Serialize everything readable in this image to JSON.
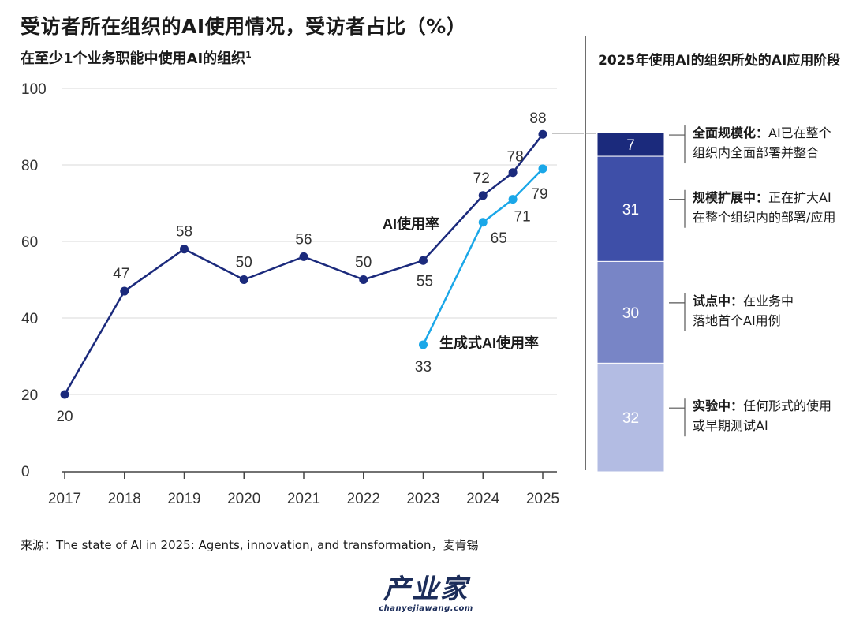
{
  "title": "受访者所在组织的AI使用情况，受访者占比（%）",
  "subtitle": "在至少1个业务职能中使用AI的组织",
  "subtitle_sup": "1",
  "right_title": "2025年使用AI的组织所处的AI应用阶段",
  "source": "来源：The state of AI in 2025: Agents, innovation, and transformation，麦肯锡",
  "logo": {
    "main": "产业家",
    "sub": "chanyejiawang.com"
  },
  "colors": {
    "ai": "#1b2a7c",
    "genai": "#1aa7e8",
    "grid": "#d9d9d9",
    "axis": "#444444"
  },
  "chart_data": [
    {
      "type": "line",
      "xlim": [
        2017,
        2025
      ],
      "ylim": [
        0,
        100
      ],
      "yticks": [
        0,
        20,
        40,
        60,
        80,
        100
      ],
      "xticks": [
        "2017",
        "2018",
        "2019",
        "2020",
        "2021",
        "2022",
        "2023",
        "2024",
        "2025"
      ],
      "grid": true,
      "series": [
        {
          "name": "AI使用率",
          "color": "#1b2a7c",
          "points": [
            {
              "x": 2017,
              "y": 20
            },
            {
              "x": 2018,
              "y": 47
            },
            {
              "x": 2019,
              "y": 58
            },
            {
              "x": 2020,
              "y": 50
            },
            {
              "x": 2021,
              "y": 56
            },
            {
              "x": 2022,
              "y": 50
            },
            {
              "x": 2023,
              "y": 55
            },
            {
              "x": 2024,
              "y": 72
            },
            {
              "x": 2024.5,
              "y": 78
            },
            {
              "x": 2025,
              "y": 88
            }
          ]
        },
        {
          "name": "生成式AI使用率",
          "color": "#1aa7e8",
          "points": [
            {
              "x": 2023,
              "y": 33
            },
            {
              "x": 2024,
              "y": 65
            },
            {
              "x": 2024.5,
              "y": 71
            },
            {
              "x": 2025,
              "y": 79
            }
          ]
        }
      ]
    },
    {
      "type": "bar",
      "stacked": true,
      "segments": [
        {
          "value": 7,
          "color": "#1b2a7c",
          "label_bold": "全面规模化：",
          "label_rest": "AI已在整个",
          "label_line2": "组织内全面部署并整合"
        },
        {
          "value": 31,
          "color": "#3e4fa8",
          "label_bold": "规模扩展中：",
          "label_rest": "正在扩大AI",
          "label_line2": "在整个组织内的部署/应用"
        },
        {
          "value": 30,
          "color": "#7885c6",
          "label_bold": "试点中：",
          "label_rest": "在业务中",
          "label_line2": "落地首个AI用例"
        },
        {
          "value": 32,
          "color": "#b3bce3",
          "label_bold": "实验中：",
          "label_rest": "任何形式的使用",
          "label_line2": "或早期测试AI"
        }
      ]
    }
  ]
}
